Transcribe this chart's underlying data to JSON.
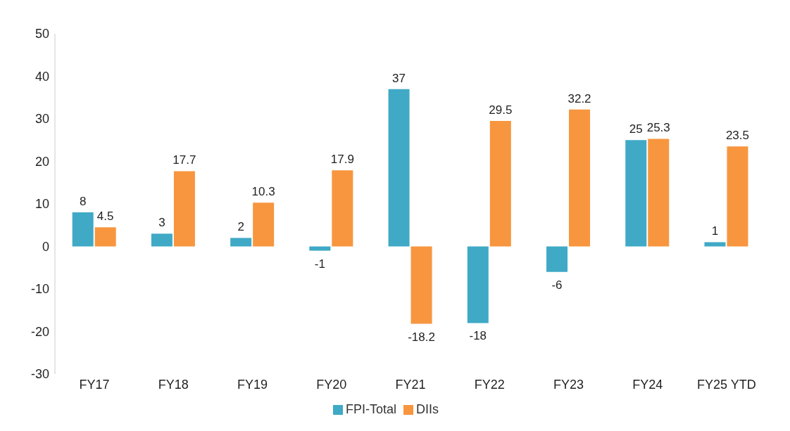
{
  "chart_data": {
    "type": "bar",
    "categories": [
      "FY17",
      "FY18",
      "FY19",
      "FY20",
      "FY21",
      "FY22",
      "FY23",
      "FY24",
      "FY25 YTD"
    ],
    "series": [
      {
        "name": "FPI-Total",
        "color": "#3fa9c6",
        "values": [
          8,
          3,
          2,
          -1,
          37,
          -18,
          -6,
          25,
          1
        ]
      },
      {
        "name": "DIIs",
        "color": "#f7963f",
        "values": [
          4.5,
          17.7,
          10.3,
          17.9,
          -18.2,
          29.5,
          32.2,
          25.3,
          23.5
        ]
      }
    ],
    "ylim": [
      -30,
      50
    ],
    "yticks": [
      -30,
      -20,
      -10,
      0,
      10,
      20,
      30,
      40,
      50
    ],
    "legend": "bottom",
    "data_labels": true
  }
}
